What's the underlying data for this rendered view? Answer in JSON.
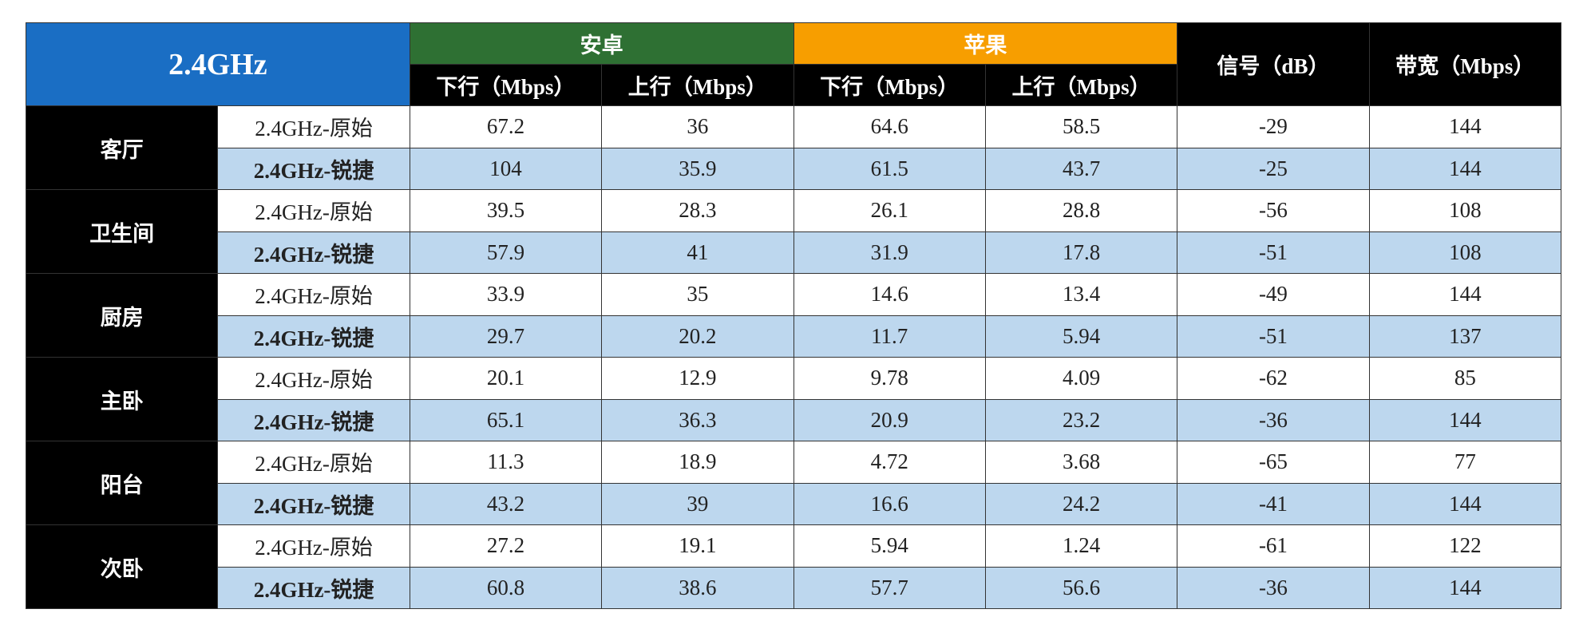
{
  "table": {
    "corner": "2.4GHz",
    "groups": [
      "安卓",
      "苹果"
    ],
    "subheaders": [
      "下行（Mbps）",
      "上行（Mbps）",
      "下行（Mbps）",
      "上行（Mbps）"
    ],
    "signal_header": "信号（dB）",
    "bandwidth_header": "带宽（Mbps）",
    "rooms": [
      {
        "name": "客厅",
        "rows": [
          {
            "label": "2.4GHz-原始",
            "values": [
              67.2,
              36,
              64.6,
              58.5,
              -29,
              144
            ]
          },
          {
            "label": "2.4GHz-锐捷",
            "values": [
              104,
              35.9,
              61.5,
              43.7,
              -25,
              144
            ]
          }
        ]
      },
      {
        "name": "卫生间",
        "rows": [
          {
            "label": "2.4GHz-原始",
            "values": [
              39.5,
              28.3,
              26.1,
              28.8,
              -56,
              108
            ]
          },
          {
            "label": "2.4GHz-锐捷",
            "values": [
              57.9,
              41,
              31.9,
              17.8,
              -51,
              108
            ]
          }
        ]
      },
      {
        "name": "厨房",
        "rows": [
          {
            "label": "2.4GHz-原始",
            "values": [
              33.9,
              35,
              14.6,
              13.4,
              -49,
              144
            ]
          },
          {
            "label": "2.4GHz-锐捷",
            "values": [
              29.7,
              20.2,
              11.7,
              5.94,
              -51,
              137
            ]
          }
        ]
      },
      {
        "name": "主卧",
        "rows": [
          {
            "label": "2.4GHz-原始",
            "values": [
              20.1,
              12.9,
              9.78,
              4.09,
              -62,
              85
            ]
          },
          {
            "label": "2.4GHz-锐捷",
            "values": [
              65.1,
              36.3,
              20.9,
              23.2,
              -36,
              144
            ]
          }
        ]
      },
      {
        "name": "阳台",
        "rows": [
          {
            "label": "2.4GHz-原始",
            "values": [
              11.3,
              18.9,
              4.72,
              3.68,
              -65,
              77
            ]
          },
          {
            "label": "2.4GHz-锐捷",
            "values": [
              43.2,
              39,
              16.6,
              24.2,
              -41,
              144
            ]
          }
        ]
      },
      {
        "name": "次卧",
        "rows": [
          {
            "label": "2.4GHz-原始",
            "values": [
              27.2,
              19.1,
              5.94,
              1.24,
              -61,
              122
            ]
          },
          {
            "label": "2.4GHz-锐捷",
            "values": [
              60.8,
              38.6,
              57.7,
              56.6,
              -36,
              144
            ]
          }
        ]
      }
    ]
  }
}
